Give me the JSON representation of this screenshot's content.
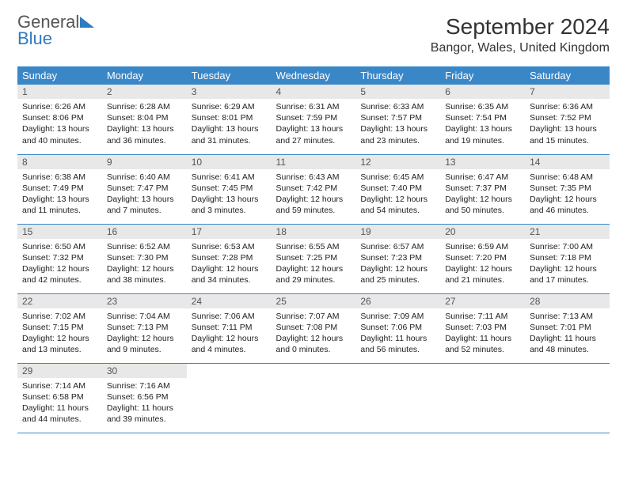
{
  "logo": {
    "line1": "General",
    "line2": "Blue"
  },
  "title": "September 2024",
  "location": "Bangor, Wales, United Kingdom",
  "colors": {
    "header_bg": "#3a87c8",
    "daynum_bg": "#e8e8e8",
    "accent": "#2f7ac0"
  },
  "daynames": [
    "Sunday",
    "Monday",
    "Tuesday",
    "Wednesday",
    "Thursday",
    "Friday",
    "Saturday"
  ],
  "weeks": [
    [
      {
        "n": "1",
        "sr": "Sunrise: 6:26 AM",
        "ss": "Sunset: 8:06 PM",
        "d1": "Daylight: 13 hours",
        "d2": "and 40 minutes."
      },
      {
        "n": "2",
        "sr": "Sunrise: 6:28 AM",
        "ss": "Sunset: 8:04 PM",
        "d1": "Daylight: 13 hours",
        "d2": "and 36 minutes."
      },
      {
        "n": "3",
        "sr": "Sunrise: 6:29 AM",
        "ss": "Sunset: 8:01 PM",
        "d1": "Daylight: 13 hours",
        "d2": "and 31 minutes."
      },
      {
        "n": "4",
        "sr": "Sunrise: 6:31 AM",
        "ss": "Sunset: 7:59 PM",
        "d1": "Daylight: 13 hours",
        "d2": "and 27 minutes."
      },
      {
        "n": "5",
        "sr": "Sunrise: 6:33 AM",
        "ss": "Sunset: 7:57 PM",
        "d1": "Daylight: 13 hours",
        "d2": "and 23 minutes."
      },
      {
        "n": "6",
        "sr": "Sunrise: 6:35 AM",
        "ss": "Sunset: 7:54 PM",
        "d1": "Daylight: 13 hours",
        "d2": "and 19 minutes."
      },
      {
        "n": "7",
        "sr": "Sunrise: 6:36 AM",
        "ss": "Sunset: 7:52 PM",
        "d1": "Daylight: 13 hours",
        "d2": "and 15 minutes."
      }
    ],
    [
      {
        "n": "8",
        "sr": "Sunrise: 6:38 AM",
        "ss": "Sunset: 7:49 PM",
        "d1": "Daylight: 13 hours",
        "d2": "and 11 minutes."
      },
      {
        "n": "9",
        "sr": "Sunrise: 6:40 AM",
        "ss": "Sunset: 7:47 PM",
        "d1": "Daylight: 13 hours",
        "d2": "and 7 minutes."
      },
      {
        "n": "10",
        "sr": "Sunrise: 6:41 AM",
        "ss": "Sunset: 7:45 PM",
        "d1": "Daylight: 13 hours",
        "d2": "and 3 minutes."
      },
      {
        "n": "11",
        "sr": "Sunrise: 6:43 AM",
        "ss": "Sunset: 7:42 PM",
        "d1": "Daylight: 12 hours",
        "d2": "and 59 minutes."
      },
      {
        "n": "12",
        "sr": "Sunrise: 6:45 AM",
        "ss": "Sunset: 7:40 PM",
        "d1": "Daylight: 12 hours",
        "d2": "and 54 minutes."
      },
      {
        "n": "13",
        "sr": "Sunrise: 6:47 AM",
        "ss": "Sunset: 7:37 PM",
        "d1": "Daylight: 12 hours",
        "d2": "and 50 minutes."
      },
      {
        "n": "14",
        "sr": "Sunrise: 6:48 AM",
        "ss": "Sunset: 7:35 PM",
        "d1": "Daylight: 12 hours",
        "d2": "and 46 minutes."
      }
    ],
    [
      {
        "n": "15",
        "sr": "Sunrise: 6:50 AM",
        "ss": "Sunset: 7:32 PM",
        "d1": "Daylight: 12 hours",
        "d2": "and 42 minutes."
      },
      {
        "n": "16",
        "sr": "Sunrise: 6:52 AM",
        "ss": "Sunset: 7:30 PM",
        "d1": "Daylight: 12 hours",
        "d2": "and 38 minutes."
      },
      {
        "n": "17",
        "sr": "Sunrise: 6:53 AM",
        "ss": "Sunset: 7:28 PM",
        "d1": "Daylight: 12 hours",
        "d2": "and 34 minutes."
      },
      {
        "n": "18",
        "sr": "Sunrise: 6:55 AM",
        "ss": "Sunset: 7:25 PM",
        "d1": "Daylight: 12 hours",
        "d2": "and 29 minutes."
      },
      {
        "n": "19",
        "sr": "Sunrise: 6:57 AM",
        "ss": "Sunset: 7:23 PM",
        "d1": "Daylight: 12 hours",
        "d2": "and 25 minutes."
      },
      {
        "n": "20",
        "sr": "Sunrise: 6:59 AM",
        "ss": "Sunset: 7:20 PM",
        "d1": "Daylight: 12 hours",
        "d2": "and 21 minutes."
      },
      {
        "n": "21",
        "sr": "Sunrise: 7:00 AM",
        "ss": "Sunset: 7:18 PM",
        "d1": "Daylight: 12 hours",
        "d2": "and 17 minutes."
      }
    ],
    [
      {
        "n": "22",
        "sr": "Sunrise: 7:02 AM",
        "ss": "Sunset: 7:15 PM",
        "d1": "Daylight: 12 hours",
        "d2": "and 13 minutes."
      },
      {
        "n": "23",
        "sr": "Sunrise: 7:04 AM",
        "ss": "Sunset: 7:13 PM",
        "d1": "Daylight: 12 hours",
        "d2": "and 9 minutes."
      },
      {
        "n": "24",
        "sr": "Sunrise: 7:06 AM",
        "ss": "Sunset: 7:11 PM",
        "d1": "Daylight: 12 hours",
        "d2": "and 4 minutes."
      },
      {
        "n": "25",
        "sr": "Sunrise: 7:07 AM",
        "ss": "Sunset: 7:08 PM",
        "d1": "Daylight: 12 hours",
        "d2": "and 0 minutes."
      },
      {
        "n": "26",
        "sr": "Sunrise: 7:09 AM",
        "ss": "Sunset: 7:06 PM",
        "d1": "Daylight: 11 hours",
        "d2": "and 56 minutes."
      },
      {
        "n": "27",
        "sr": "Sunrise: 7:11 AM",
        "ss": "Sunset: 7:03 PM",
        "d1": "Daylight: 11 hours",
        "d2": "and 52 minutes."
      },
      {
        "n": "28",
        "sr": "Sunrise: 7:13 AM",
        "ss": "Sunset: 7:01 PM",
        "d1": "Daylight: 11 hours",
        "d2": "and 48 minutes."
      }
    ],
    [
      {
        "n": "29",
        "sr": "Sunrise: 7:14 AM",
        "ss": "Sunset: 6:58 PM",
        "d1": "Daylight: 11 hours",
        "d2": "and 44 minutes."
      },
      {
        "n": "30",
        "sr": "Sunrise: 7:16 AM",
        "ss": "Sunset: 6:56 PM",
        "d1": "Daylight: 11 hours",
        "d2": "and 39 minutes."
      },
      null,
      null,
      null,
      null,
      null
    ]
  ]
}
